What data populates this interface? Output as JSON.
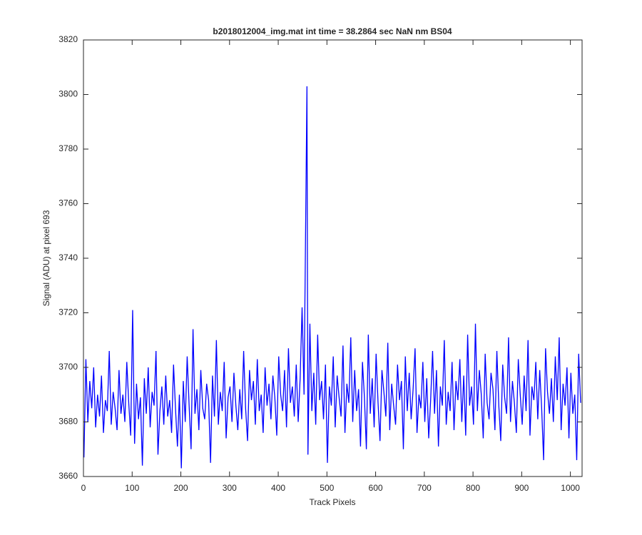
{
  "chart_data": {
    "type": "line",
    "title": "b2018012004_img.mat int time = 38.2864 sec  NaN nm BS04",
    "x_label": "Track Pixels",
    "y_label": "Signal (ADU) at pixel 693",
    "xlim": [
      0,
      1024
    ],
    "ylim": [
      3660,
      3820
    ],
    "xticks": [
      0,
      100,
      200,
      300,
      400,
      500,
      600,
      700,
      800,
      900,
      1000
    ],
    "yticks": [
      3660,
      3680,
      3700,
      3720,
      3740,
      3760,
      3780,
      3800,
      3820
    ],
    "series": [
      {
        "color": "#0000ff",
        "x": [
          1,
          5,
          9,
          13,
          17,
          21,
          25,
          29,
          33,
          37,
          41,
          45,
          49,
          53,
          57,
          61,
          65,
          69,
          73,
          77,
          81,
          85,
          89,
          93,
          97,
          101,
          105,
          109,
          113,
          117,
          121,
          125,
          129,
          133,
          137,
          141,
          145,
          149,
          153,
          157,
          161,
          165,
          169,
          173,
          177,
          181,
          185,
          189,
          193,
          197,
          201,
          205,
          209,
          213,
          217,
          221,
          225,
          229,
          233,
          237,
          241,
          245,
          249,
          253,
          257,
          261,
          265,
          269,
          273,
          277,
          281,
          285,
          289,
          293,
          297,
          301,
          305,
          309,
          313,
          317,
          321,
          325,
          329,
          333,
          337,
          341,
          345,
          349,
          353,
          357,
          361,
          365,
          369,
          373,
          377,
          381,
          385,
          389,
          393,
          397,
          401,
          405,
          409,
          413,
          417,
          421,
          425,
          429,
          433,
          437,
          441,
          445,
          449,
          453,
          459,
          461,
          465,
          469,
          473,
          477,
          481,
          485,
          489,
          493,
          497,
          501,
          505,
          509,
          513,
          517,
          521,
          525,
          529,
          533,
          537,
          541,
          545,
          549,
          553,
          557,
          561,
          565,
          569,
          573,
          577,
          581,
          585,
          589,
          593,
          597,
          601,
          605,
          609,
          613,
          617,
          621,
          625,
          629,
          633,
          637,
          641,
          645,
          649,
          653,
          657,
          661,
          665,
          669,
          673,
          677,
          681,
          685,
          689,
          693,
          697,
          701,
          705,
          709,
          713,
          717,
          721,
          725,
          729,
          733,
          737,
          741,
          745,
          749,
          753,
          757,
          761,
          765,
          769,
          773,
          777,
          781,
          785,
          789,
          793,
          797,
          801,
          805,
          809,
          813,
          817,
          821,
          825,
          829,
          833,
          837,
          841,
          845,
          849,
          853,
          857,
          861,
          865,
          869,
          873,
          877,
          881,
          885,
          889,
          893,
          897,
          901,
          905,
          909,
          913,
          917,
          921,
          925,
          929,
          933,
          937,
          941,
          945,
          949,
          953,
          957,
          961,
          965,
          969,
          973,
          977,
          981,
          985,
          989,
          993,
          997,
          1001,
          1005,
          1009,
          1013,
          1017,
          1021
        ],
        "values": [
          3667,
          3703,
          3680,
          3695,
          3685,
          3700,
          3678,
          3690,
          3682,
          3697,
          3676,
          3688,
          3684,
          3706,
          3679,
          3691,
          3685,
          3677,
          3699,
          3683,
          3690,
          3680,
          3702,
          3687,
          3675,
          3721,
          3672,
          3694,
          3681,
          3689,
          3664,
          3696,
          3683,
          3700,
          3678,
          3691,
          3686,
          3706,
          3668,
          3684,
          3693,
          3679,
          3697,
          3682,
          3688,
          3676,
          3701,
          3685,
          3671,
          3690,
          3663,
          3695,
          3680,
          3704,
          3686,
          3670,
          3714,
          3683,
          3692,
          3677,
          3699,
          3685,
          3681,
          3694,
          3688,
          3665,
          3697,
          3682,
          3710,
          3679,
          3691,
          3684,
          3702,
          3674,
          3689,
          3693,
          3680,
          3698,
          3686,
          3677,
          3692,
          3681,
          3706,
          3685,
          3673,
          3699,
          3688,
          3695,
          3679,
          3703,
          3684,
          3690,
          3676,
          3700,
          3686,
          3694,
          3681,
          3697,
          3689,
          3675,
          3704,
          3690,
          3684,
          3699,
          3678,
          3707,
          3687,
          3693,
          3682,
          3701,
          3680,
          3696,
          3722,
          3690,
          3803,
          3668,
          3716,
          3684,
          3698,
          3679,
          3712,
          3688,
          3695,
          3681,
          3701,
          3665,
          3693,
          3686,
          3704,
          3678,
          3697,
          3689,
          3682,
          3708,
          3676,
          3694,
          3687,
          3711,
          3680,
          3699,
          3684,
          3692,
          3671,
          3702,
          3689,
          3670,
          3712,
          3683,
          3696,
          3678,
          3705,
          3687,
          3673,
          3699,
          3691,
          3682,
          3709,
          3677,
          3694,
          3686,
          3679,
          3701,
          3688,
          3695,
          3670,
          3704,
          3684,
          3698,
          3681,
          3692,
          3707,
          3676,
          3690,
          3685,
          3702,
          3680,
          3696,
          3674,
          3688,
          3706,
          3683,
          3699,
          3671,
          3693,
          3686,
          3710,
          3679,
          3691,
          3684,
          3702,
          3677,
          3695,
          3688,
          3703,
          3680,
          3697,
          3675,
          3712,
          3686,
          3693,
          3679,
          3716,
          3684,
          3699,
          3690,
          3674,
          3705,
          3687,
          3681,
          3698,
          3692,
          3677,
          3706,
          3686,
          3673,
          3701,
          3689,
          3683,
          3711,
          3680,
          3695,
          3687,
          3676,
          3703,
          3690,
          3679,
          3697,
          3684,
          3710,
          3675,
          3693,
          3688,
          3702,
          3681,
          3699,
          3685,
          3666,
          3707,
          3691,
          3683,
          3696,
          3680,
          3704,
          3688,
          3711,
          3677,
          3694,
          3686,
          3700,
          3674,
          3698,
          3683,
          3690,
          3666,
          3705,
          3687
        ]
      }
    ]
  }
}
